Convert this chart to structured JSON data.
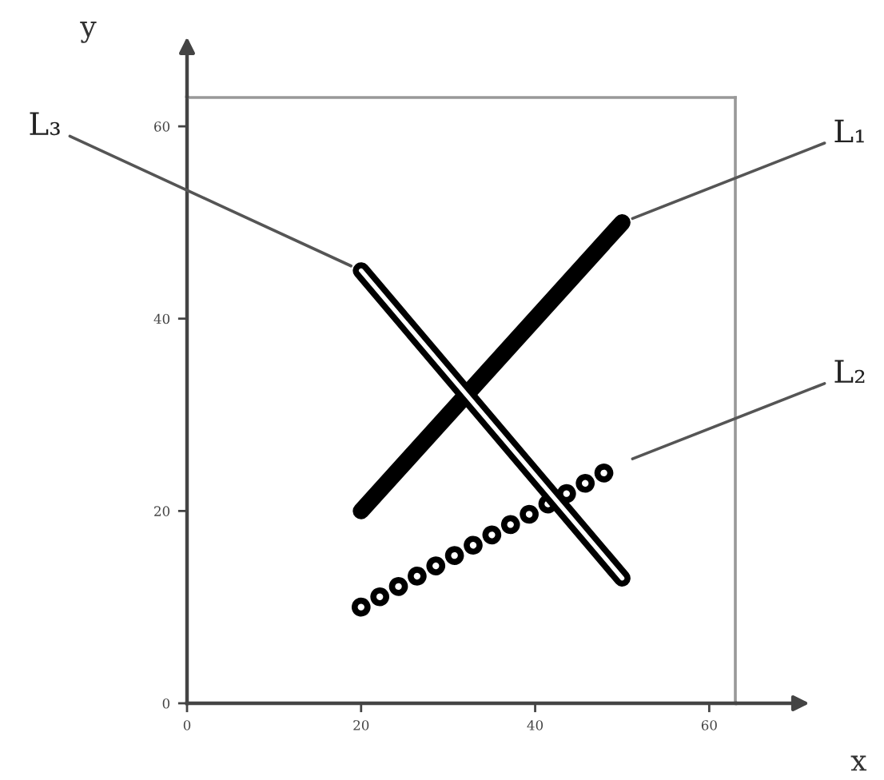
{
  "chart_data": {
    "type": "line",
    "xlabel": "x",
    "ylabel": "y",
    "x": [
      20,
      50
    ],
    "xlim": [
      0,
      63
    ],
    "ylim": [
      0,
      63
    ],
    "xticks": [
      0,
      20,
      40,
      60
    ],
    "yticks": [
      0,
      20,
      40,
      60
    ],
    "grid": false,
    "legend": false,
    "marker": "none",
    "series": [
      {
        "name": "L₁",
        "color": "#000000",
        "line_style": "solid",
        "values": [
          20,
          50
        ]
      },
      {
        "name": "L₂",
        "color": "#000000",
        "line_style": "dotted",
        "values": [
          10,
          25
        ]
      },
      {
        "name": "L₃",
        "color": "#000000",
        "line_style": "solid",
        "values": [
          45,
          13
        ]
      }
    ]
  }
}
